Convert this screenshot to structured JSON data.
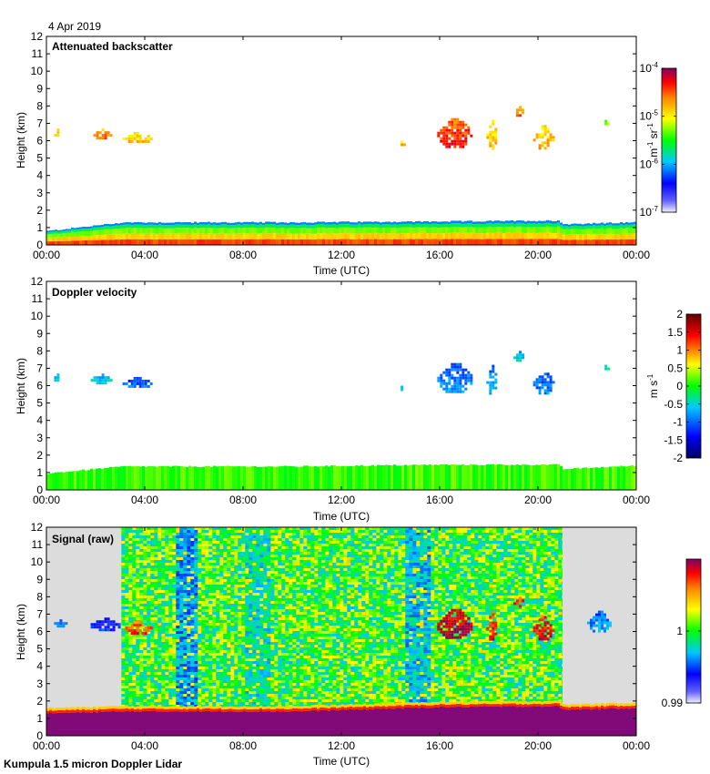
{
  "date": "4 Apr 2019",
  "footer": "Kumpula 1.5 micron Doppler Lidar",
  "colors": {
    "missing": "#dcdcdc",
    "frame": "#000000",
    "background": "#ffffff"
  },
  "chart_data": [
    {
      "type": "heatmap",
      "title": "Attenuated backscatter",
      "xlabel": "Time (UTC)",
      "ylabel": "Height (km)",
      "xlim": [
        0,
        24
      ],
      "ylim": [
        0,
        12
      ],
      "x_ticks": [
        "00:00",
        "04:00",
        "08:00",
        "12:00",
        "16:00",
        "20:00",
        "00:00"
      ],
      "y_ticks": [
        "0",
        "1",
        "2",
        "3",
        "4",
        "5",
        "6",
        "7",
        "8",
        "9",
        "10",
        "11",
        "12"
      ],
      "colorbar": {
        "unit": "m-1 sr-1",
        "unit_parts": [
          "m",
          "-1",
          " sr",
          "-1"
        ],
        "scale": "log",
        "range": [
          1e-07,
          0.0001
        ],
        "tick_labels": [
          [
            "10",
            "-7"
          ],
          [
            "10",
            "-6"
          ],
          [
            "10",
            "-5"
          ],
          [
            "10",
            "-4"
          ]
        ]
      },
      "data_gaps_hours": [],
      "features": {
        "boundary_layer_top_km": [
          [
            0,
            0.8
          ],
          [
            3.1,
            1.3
          ],
          [
            10,
            1.3
          ],
          [
            16,
            1.35
          ],
          [
            20.8,
            1.4
          ],
          [
            21,
            1.2
          ],
          [
            24,
            1.3
          ]
        ],
        "cloud_patches": [
          {
            "t0": 0.2,
            "t1": 0.6,
            "h0": 6.3,
            "h1": 6.7,
            "level": 0.72
          },
          {
            "t0": 1.8,
            "t1": 2.6,
            "h0": 6.2,
            "h1": 6.7,
            "level": 0.78
          },
          {
            "t0": 3.1,
            "t1": 4.3,
            "h0": 5.9,
            "h1": 6.5,
            "level": 0.7
          },
          {
            "t0": 15.9,
            "t1": 17.3,
            "h0": 5.6,
            "h1": 7.3,
            "level": 0.86
          },
          {
            "t0": 17.9,
            "t1": 18.3,
            "h0": 5.6,
            "h1": 7.2,
            "level": 0.7
          },
          {
            "t0": 19.0,
            "t1": 19.4,
            "h0": 7.5,
            "h1": 8.0,
            "level": 0.78
          },
          {
            "t0": 19.8,
            "t1": 20.6,
            "h0": 5.6,
            "h1": 6.9,
            "level": 0.72
          },
          {
            "t0": 14.3,
            "t1": 14.6,
            "h0": 5.8,
            "h1": 6.0,
            "level": 0.7
          },
          {
            "t0": 22.6,
            "t1": 22.9,
            "h0": 7.0,
            "h1": 7.2,
            "level": 0.55
          }
        ]
      }
    },
    {
      "type": "heatmap",
      "title": "Doppler velocity",
      "xlabel": "Time (UTC)",
      "ylabel": "Height (km)",
      "xlim": [
        0,
        24
      ],
      "ylim": [
        0,
        12
      ],
      "x_ticks": [
        "00:00",
        "04:00",
        "08:00",
        "12:00",
        "16:00",
        "20:00",
        "00:00"
      ],
      "y_ticks": [
        "0",
        "1",
        "2",
        "3",
        "4",
        "5",
        "6",
        "7",
        "8",
        "9",
        "10",
        "11",
        "12"
      ],
      "colorbar": {
        "unit": "m s-1",
        "unit_parts": [
          "m s",
          "-1"
        ],
        "scale": "linear",
        "range": [
          -2,
          2
        ],
        "tick_labels": [
          "2",
          "1.5",
          "1",
          "0.5",
          "0",
          "-0.5",
          "-1",
          "-1.5",
          "-2"
        ]
      },
      "data_gaps_hours": [],
      "features": {
        "boundary_layer_top_km": [
          [
            0,
            0.95
          ],
          [
            3.1,
            1.35
          ],
          [
            10,
            1.35
          ],
          [
            16,
            1.45
          ],
          [
            20.8,
            1.45
          ],
          [
            21,
            1.2
          ],
          [
            24,
            1.4
          ]
        ],
        "cloud_patches": [
          {
            "t0": 0.2,
            "t1": 0.6,
            "h0": 6.3,
            "h1": 6.7,
            "level": 0.38
          },
          {
            "t0": 1.8,
            "t1": 2.6,
            "h0": 6.2,
            "h1": 6.7,
            "level": 0.35
          },
          {
            "t0": 3.1,
            "t1": 4.3,
            "h0": 5.9,
            "h1": 6.5,
            "level": 0.24
          },
          {
            "t0": 15.9,
            "t1": 17.3,
            "h0": 5.6,
            "h1": 7.3,
            "level": 0.27
          },
          {
            "t0": 17.9,
            "t1": 18.3,
            "h0": 5.6,
            "h1": 7.2,
            "level": 0.3
          },
          {
            "t0": 19.0,
            "t1": 19.4,
            "h0": 7.5,
            "h1": 8.0,
            "level": 0.36
          },
          {
            "t0": 19.8,
            "t1": 20.6,
            "h0": 5.6,
            "h1": 6.9,
            "level": 0.25
          },
          {
            "t0": 14.3,
            "t1": 14.6,
            "h0": 5.8,
            "h1": 6.0,
            "level": 0.4
          },
          {
            "t0": 22.6,
            "t1": 22.9,
            "h0": 7.0,
            "h1": 7.2,
            "level": 0.4
          }
        ]
      }
    },
    {
      "type": "heatmap",
      "title": "Signal (raw)",
      "xlabel": "Time (UTC)",
      "ylabel": "Height (km)",
      "xlim": [
        0,
        24
      ],
      "ylim": [
        0,
        12
      ],
      "x_ticks": [
        "00:00",
        "04:00",
        "08:00",
        "12:00",
        "16:00",
        "20:00",
        "00:00"
      ],
      "y_ticks": [
        "0",
        "1",
        "2",
        "3",
        "4",
        "5",
        "6",
        "7",
        "8",
        "9",
        "10",
        "11",
        "12"
      ],
      "colorbar": {
        "unit": "",
        "scale": "linear",
        "range": [
          0.99,
          1.01
        ],
        "tick_labels": [
          "1",
          "0.99"
        ]
      },
      "data_gaps_hours": [
        [
          0,
          3.05
        ],
        [
          21.0,
          24
        ]
      ],
      "features": {
        "boundary_layer_top_km": [
          [
            0,
            1.3
          ],
          [
            3.05,
            1.4
          ],
          [
            10,
            1.4
          ],
          [
            16,
            1.65
          ],
          [
            20.8,
            1.7
          ],
          [
            21,
            1.5
          ],
          [
            24,
            1.6
          ]
        ],
        "cloud_patches": [
          {
            "t0": 15.9,
            "t1": 17.3,
            "h0": 5.6,
            "h1": 7.3,
            "level": 0.95
          },
          {
            "t0": 17.9,
            "t1": 18.3,
            "h0": 5.6,
            "h1": 7.2,
            "level": 0.88
          },
          {
            "t0": 19.0,
            "t1": 19.4,
            "h0": 7.5,
            "h1": 8.0,
            "level": 0.88
          },
          {
            "t0": 19.8,
            "t1": 20.6,
            "h0": 5.6,
            "h1": 6.9,
            "level": 0.9
          },
          {
            "t0": 3.1,
            "t1": 4.3,
            "h0": 5.9,
            "h1": 6.6,
            "level": 0.85
          },
          {
            "t0": 0.2,
            "t1": 0.8,
            "h0": 6.3,
            "h1": 6.7,
            "level": 0.3
          },
          {
            "t0": 1.8,
            "t1": 3.0,
            "h0": 6.1,
            "h1": 6.8,
            "level": 0.2
          },
          {
            "t0": 22.0,
            "t1": 23.0,
            "h0": 6.0,
            "h1": 7.2,
            "level": 0.3
          }
        ]
      }
    }
  ]
}
